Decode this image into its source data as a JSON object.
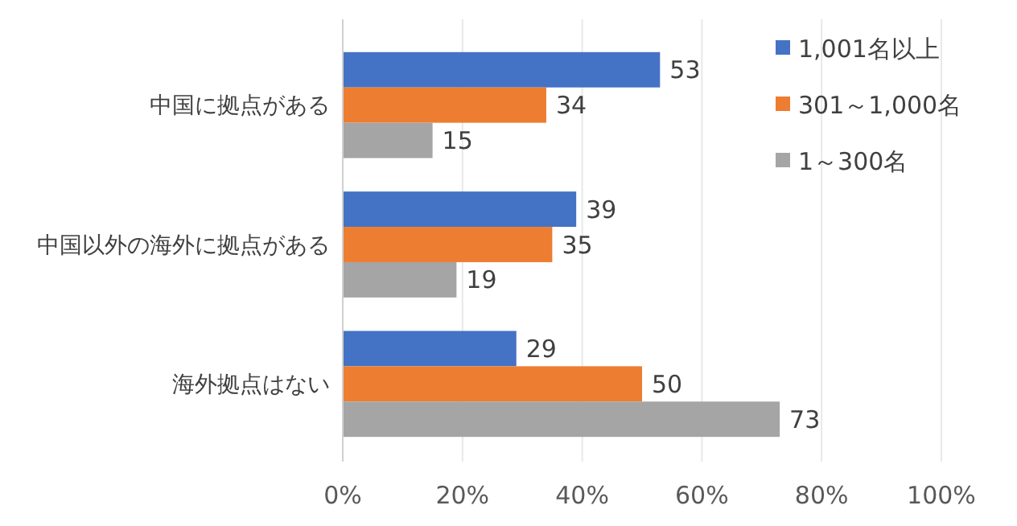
{
  "chart_data": {
    "type": "bar",
    "orientation": "horizontal",
    "categories": [
      "中国に拠点がある",
      "中国以外の海外に拠点がある",
      "海外拠点はない"
    ],
    "series": [
      {
        "name": "1,001名以上",
        "color": "#4472c4",
        "values": [
          53,
          39,
          29
        ]
      },
      {
        "name": "301～1,000名",
        "color": "#ed7d31",
        "values": [
          34,
          35,
          50
        ]
      },
      {
        "name": "1～300名",
        "color": "#a5a5a5",
        "values": [
          15,
          19,
          73
        ]
      }
    ],
    "xlim": [
      0,
      100
    ],
    "xticks": [
      {
        "value": 0,
        "label": "0%"
      },
      {
        "value": 20,
        "label": "20%"
      },
      {
        "value": 40,
        "label": "40%"
      },
      {
        "value": 60,
        "label": "60%"
      },
      {
        "value": 80,
        "label": "80%"
      },
      {
        "value": 100,
        "label": "100%"
      }
    ],
    "grid": "x",
    "legend": "top right",
    "data_labels": true
  }
}
